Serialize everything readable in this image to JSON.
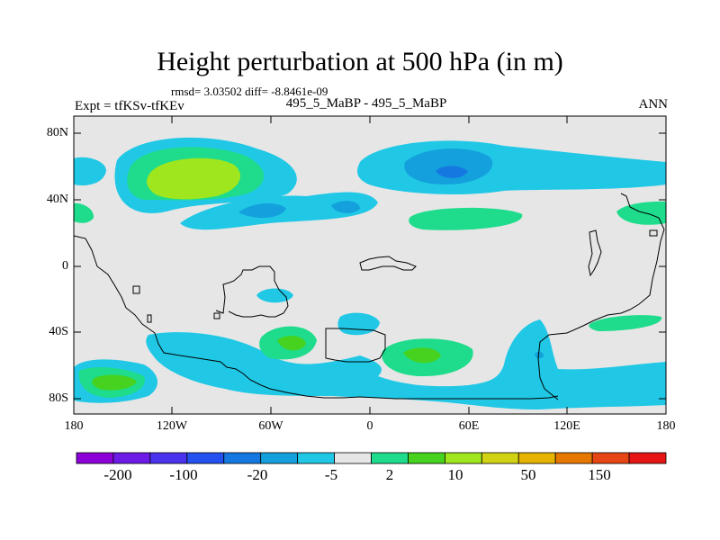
{
  "title": "Height perturbation at 500 hPa (in m)",
  "stats": "rmsd= 3.03502 diff= -8.8461e-09",
  "labels": {
    "left": "Expt = tfKSv-tfKEv",
    "center": "495_5_MaBP - 495_5_MaBP",
    "right": "ANN"
  },
  "axes": {
    "y_ticks": [
      "80N",
      "40N",
      "0",
      "40S",
      "80S"
    ],
    "x_ticks": [
      "180",
      "120W",
      "60W",
      "0",
      "60E",
      "120E",
      "180"
    ]
  },
  "colorbar": {
    "colors": [
      "#8c00d7",
      "#6c1ae6",
      "#4a33ee",
      "#2350ee",
      "#1478e0",
      "#14a0dc",
      "#20c8e6",
      "#e6e6e6",
      "#1edc8c",
      "#46d21e",
      "#a0e61e",
      "#d2d214",
      "#e6b400",
      "#e67800",
      "#e64614",
      "#e61414"
    ],
    "tick_labels": [
      "-200",
      "-100",
      "-20",
      "-5",
      "2",
      "10",
      "50",
      "150"
    ]
  }
}
